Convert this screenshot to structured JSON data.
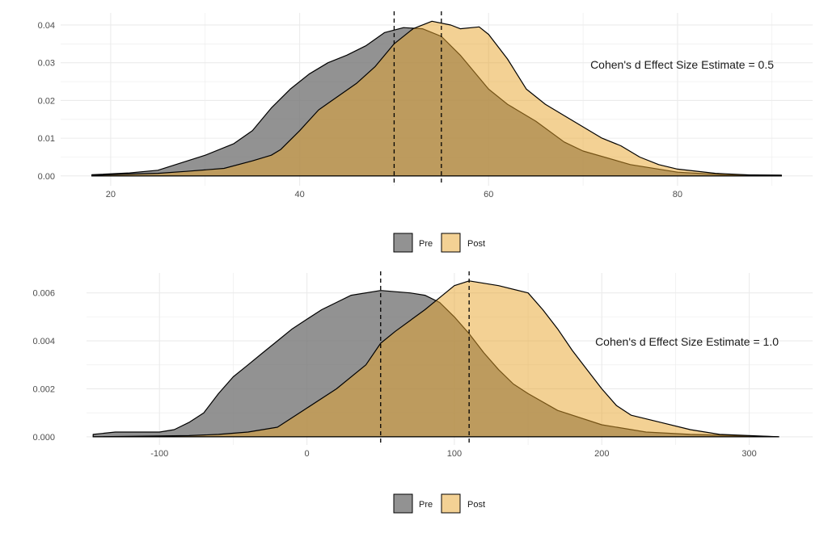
{
  "colors": {
    "pre": "#777777",
    "post": "#E7A329",
    "outline": "#000000",
    "grid": "#ebebeb"
  },
  "chart_data": [
    {
      "type": "area",
      "subtype": "density",
      "title": "",
      "xlabel": "",
      "ylabel": "",
      "xlim": [
        14.7,
        94.3
      ],
      "ylim": [
        -0.0026,
        0.0432
      ],
      "xticks": [
        20,
        40,
        60,
        80
      ],
      "xtick_labels": [
        "20",
        "40",
        "60",
        "80"
      ],
      "yticks": [
        0,
        0.01,
        0.02,
        0.03,
        0.04
      ],
      "ytick_labels": [
        "0.00",
        "0.01",
        "0.02",
        "0.03",
        "0.04"
      ],
      "grid": true,
      "legend": {
        "position": "bottom",
        "entries": [
          "Pre",
          "Post"
        ]
      },
      "annotation": "Cohen's d Effect Size Estimate = 0.5",
      "vlines": [
        50,
        55
      ],
      "series": [
        {
          "name": "Pre",
          "x": [
            18,
            22,
            25,
            30,
            33,
            35,
            37,
            39,
            41,
            43,
            45,
            47,
            49,
            51,
            53,
            55,
            57,
            60,
            62,
            65,
            68,
            70,
            75,
            80,
            85,
            91
          ],
          "y": [
            0.0003,
            0.0008,
            0.0015,
            0.0055,
            0.0085,
            0.012,
            0.018,
            0.023,
            0.027,
            0.03,
            0.032,
            0.0345,
            0.038,
            0.0393,
            0.039,
            0.037,
            0.032,
            0.023,
            0.019,
            0.0145,
            0.009,
            0.0066,
            0.003,
            0.001,
            0.0003,
            0.0002
          ]
        },
        {
          "name": "Post",
          "x": [
            18,
            25,
            28,
            32,
            35,
            37,
            38,
            40,
            42,
            44,
            46,
            48,
            50,
            52,
            54,
            56,
            57,
            59,
            60,
            62,
            64,
            66,
            68,
            70,
            72,
            74,
            76,
            78,
            80,
            84,
            88,
            91
          ],
          "y": [
            0.0002,
            0.0007,
            0.0012,
            0.002,
            0.004,
            0.0055,
            0.007,
            0.012,
            0.0175,
            0.021,
            0.0245,
            0.029,
            0.035,
            0.039,
            0.041,
            0.04,
            0.039,
            0.0395,
            0.0375,
            0.031,
            0.023,
            0.019,
            0.016,
            0.013,
            0.01,
            0.008,
            0.005,
            0.003,
            0.0018,
            0.0007,
            0.0002,
            0.0
          ]
        }
      ]
    },
    {
      "type": "area",
      "subtype": "density",
      "title": "",
      "xlabel": "",
      "ylabel": "",
      "xlim": [
        -149.5,
        343
      ],
      "ylim": [
        -0.00034,
        0.00683
      ],
      "xticks": [
        -100,
        0,
        100,
        200,
        300
      ],
      "xtick_labels": [
        "-100",
        "0",
        "100",
        "200",
        "300"
      ],
      "yticks": [
        0,
        0.002,
        0.004,
        0.006
      ],
      "ytick_labels": [
        "0.000",
        "0.002",
        "0.004",
        "0.006"
      ],
      "grid": true,
      "legend": {
        "position": "bottom",
        "entries": [
          "Pre",
          "Post"
        ]
      },
      "annotation": "Cohen's d Effect Size Estimate = 1.0",
      "vlines": [
        50,
        110
      ],
      "series": [
        {
          "name": "Pre",
          "x": [
            -145,
            -130,
            -100,
            -90,
            -80,
            -70,
            -60,
            -50,
            -40,
            -30,
            -20,
            -10,
            0,
            10,
            20,
            30,
            50,
            70,
            80,
            90,
            100,
            110,
            120,
            130,
            140,
            150,
            170,
            200,
            230,
            260,
            320
          ],
          "y": [
            0.0001,
            0.0002,
            0.0002,
            0.0003,
            0.0006,
            0.001,
            0.0018,
            0.0025,
            0.003,
            0.0035,
            0.004,
            0.0045,
            0.0049,
            0.0053,
            0.0056,
            0.0059,
            0.0061,
            0.006,
            0.0059,
            0.0056,
            0.005,
            0.0043,
            0.0035,
            0.0028,
            0.0022,
            0.0018,
            0.0011,
            0.0005,
            0.0002,
            0.0001,
            0.0
          ]
        },
        {
          "name": "Post",
          "x": [
            -145,
            -80,
            -60,
            -40,
            -20,
            0,
            20,
            40,
            50,
            60,
            80,
            100,
            110,
            130,
            150,
            160,
            170,
            180,
            190,
            200,
            210,
            220,
            240,
            260,
            280,
            320
          ],
          "y": [
            0.0,
            5e-05,
            0.0001,
            0.0002,
            0.0004,
            0.0012,
            0.002,
            0.003,
            0.0039,
            0.0044,
            0.0053,
            0.0063,
            0.0065,
            0.0063,
            0.006,
            0.0053,
            0.0045,
            0.0036,
            0.0028,
            0.002,
            0.0013,
            0.0009,
            0.0006,
            0.0003,
            0.0001,
            0.0
          ]
        }
      ]
    }
  ]
}
